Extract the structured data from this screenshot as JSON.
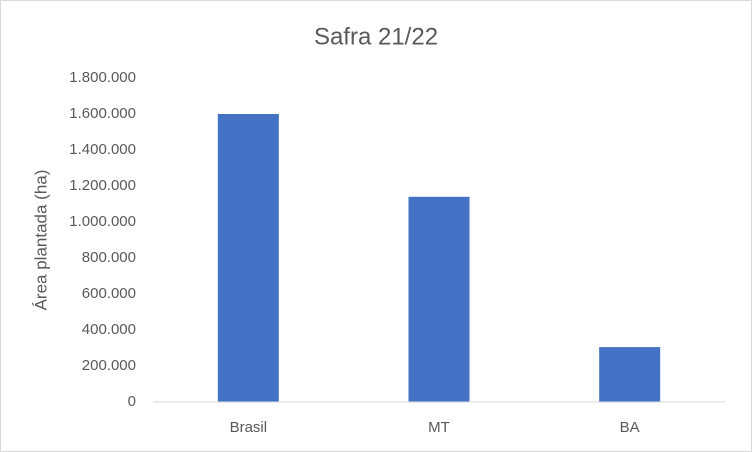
{
  "chart_data": {
    "type": "bar",
    "title": "Safra 21/22",
    "y_label": "Área plantada (ha)",
    "categories": [
      "Brasil",
      "MT",
      "BA"
    ],
    "values": [
      1600000,
      1140000,
      305000
    ],
    "color": "#4472c4",
    "ylim": [
      0,
      1800000
    ],
    "yticks": [
      0,
      {
        "value": 200000,
        "label": "200.000"
      },
      {
        "value": 400000,
        "label": "400.000"
      },
      {
        "value": 600000,
        "label": "600.000"
      },
      {
        "value": 800000,
        "label": "800.000"
      },
      {
        "value": 1000000,
        "label": "1.000.000"
      },
      {
        "value": 1200000,
        "label": "1.200.000"
      },
      {
        "value": 1400000,
        "label": "1.400.000"
      },
      {
        "value": 1600000,
        "label": "1.600.000"
      },
      {
        "value": 1800000,
        "label": "1.800.000"
      }
    ],
    "grid": false
  }
}
